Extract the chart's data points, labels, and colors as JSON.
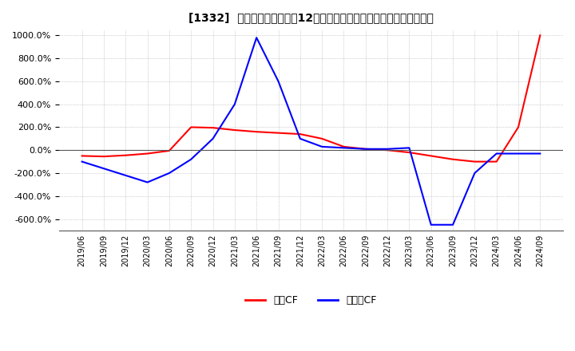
{
  "title": "[1332]  キャッシュフローの12か月移動合計の対前年同期増減率の推移",
  "legend_labels": [
    "営業CF",
    "フリーCF"
  ],
  "line_colors": [
    "#ff0000",
    "#0000ff"
  ],
  "ylim": [
    -700,
    1050
  ],
  "yticks": [
    -600,
    -400,
    -200,
    0,
    200,
    400,
    600,
    800,
    1000
  ],
  "background_color": "#ffffff",
  "grid_color": "#aaaaaa",
  "operating_cf_values": [
    -50,
    -55,
    -45,
    -30,
    -5,
    200,
    195,
    175,
    160,
    150,
    140,
    100,
    30,
    10,
    0,
    -20,
    -50,
    -80,
    -100,
    -100,
    200,
    1000
  ],
  "free_cf_values": [
    -100,
    -160,
    -220,
    -280,
    -200,
    -80,
    100,
    400,
    980,
    600,
    100,
    30,
    20,
    10,
    10,
    20,
    -650,
    -650,
    -200,
    -30,
    -30,
    -30
  ],
  "xtick_labels": [
    "2019/06",
    "2019/09",
    "2019/12",
    "2020/03",
    "2020/06",
    "2020/09",
    "2020/12",
    "2021/03",
    "2021/06",
    "2021/09",
    "2021/12",
    "2022/03",
    "2022/06",
    "2022/09",
    "2022/12",
    "2023/03",
    "2023/06",
    "2023/09",
    "2023/12",
    "2024/03",
    "2024/06",
    "2024/09"
  ]
}
